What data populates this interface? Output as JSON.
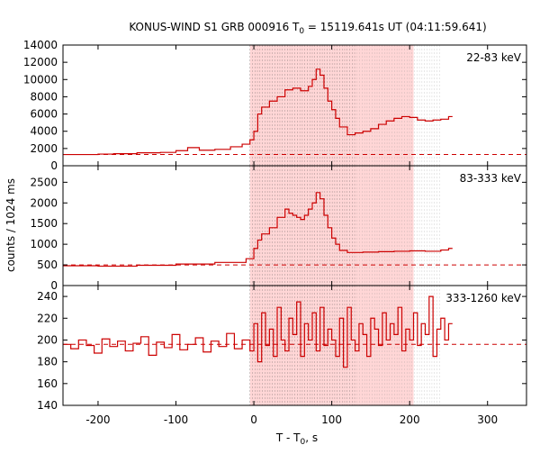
{
  "chart_data": {
    "type": "line",
    "title": "KONUS-WIND S1 GRB 000916 T",
    "title_sub": "0",
    "title_rest": " = 15119.641s UT (04:11:59.641)",
    "xlabel": "T - T",
    "xlabel_sub": "0",
    "xlabel_rest": ", s",
    "ylabel": "counts / 1024 ms",
    "xlim": [
      -245,
      350
    ],
    "xticks": [
      "-200",
      "-100",
      "0",
      "100",
      "200",
      "300"
    ],
    "xtick_values": [
      -200,
      -100,
      0,
      100,
      200,
      300
    ],
    "line_color": "#cc0000",
    "shade_color": "#ffd6d6",
    "shade_range": [
      -5,
      205
    ],
    "grid": false,
    "panels": [
      {
        "label": "22-83 keV",
        "ylim": [
          0,
          14000
        ],
        "yticks": [
          "0",
          "2000",
          "4000",
          "6000",
          "8000",
          "10000",
          "12000",
          "14000"
        ],
        "ytick_values": [
          0,
          2000,
          4000,
          6000,
          8000,
          10000,
          12000,
          14000
        ],
        "background": 1300,
        "series": {
          "x": [
            -245,
            -220,
            -200,
            -180,
            -150,
            -120,
            -100,
            -85,
            -70,
            -50,
            -30,
            -15,
            -5,
            0,
            5,
            10,
            20,
            30,
            40,
            50,
            60,
            70,
            75,
            80,
            85,
            90,
            95,
            100,
            105,
            110,
            120,
            130,
            140,
            150,
            160,
            170,
            180,
            190,
            200,
            210,
            220,
            230,
            240,
            250
          ],
          "y": [
            1300,
            1300,
            1350,
            1400,
            1500,
            1550,
            1750,
            2100,
            1800,
            1900,
            2200,
            2500,
            3000,
            4000,
            6000,
            6800,
            7500,
            8000,
            8800,
            9000,
            8700,
            9200,
            10000,
            11200,
            10500,
            9000,
            7500,
            6500,
            5500,
            4500,
            3600,
            3800,
            4000,
            4300,
            4800,
            5200,
            5500,
            5700,
            5600,
            5300,
            5200,
            5300,
            5400,
            5700
          ]
        }
      },
      {
        "label": "83-333 keV",
        "ylim": [
          0,
          2900
        ],
        "yticks": [
          "0",
          "500",
          "1000",
          "1500",
          "2000",
          "2500"
        ],
        "ytick_values": [
          0,
          500,
          1000,
          1500,
          2000,
          2500
        ],
        "background": 500,
        "series": {
          "x": [
            -245,
            -200,
            -150,
            -100,
            -50,
            -10,
            0,
            5,
            10,
            20,
            30,
            40,
            45,
            50,
            55,
            60,
            65,
            70,
            75,
            80,
            85,
            90,
            95,
            100,
            105,
            110,
            120,
            140,
            160,
            180,
            200,
            220,
            240,
            250
          ],
          "y": [
            480,
            470,
            490,
            520,
            560,
            650,
            900,
            1100,
            1250,
            1400,
            1650,
            1850,
            1750,
            1700,
            1650,
            1600,
            1700,
            1850,
            2000,
            2250,
            2100,
            1700,
            1400,
            1150,
            1000,
            850,
            800,
            810,
            820,
            830,
            840,
            830,
            860,
            900
          ]
        }
      },
      {
        "label": "333-1260 keV",
        "ylim": [
          140,
          250
        ],
        "yticks": [
          "140",
          "160",
          "180",
          "200",
          "220",
          "240"
        ],
        "ytick_values": [
          140,
          160,
          180,
          200,
          220,
          240
        ],
        "background": 196,
        "series": {
          "x": [
            -245,
            -235,
            -225,
            -215,
            -205,
            -195,
            -185,
            -175,
            -165,
            -155,
            -145,
            -135,
            -125,
            -115,
            -105,
            -95,
            -85,
            -75,
            -65,
            -55,
            -45,
            -35,
            -25,
            -15,
            -5,
            0,
            5,
            10,
            15,
            20,
            25,
            30,
            35,
            40,
            45,
            50,
            55,
            60,
            65,
            70,
            75,
            80,
            85,
            90,
            95,
            100,
            105,
            110,
            115,
            120,
            125,
            130,
            135,
            140,
            145,
            150,
            155,
            160,
            165,
            170,
            175,
            180,
            185,
            190,
            195,
            200,
            205,
            210,
            215,
            220,
            225,
            230,
            235,
            240,
            245,
            250
          ],
          "y": [
            196,
            192,
            200,
            195,
            188,
            201,
            194,
            199,
            190,
            197,
            203,
            186,
            198,
            193,
            205,
            191,
            196,
            202,
            189,
            199,
            194,
            206,
            192,
            200,
            190,
            215,
            180,
            225,
            195,
            210,
            185,
            230,
            200,
            190,
            220,
            205,
            235,
            185,
            215,
            200,
            225,
            190,
            230,
            195,
            210,
            200,
            185,
            220,
            175,
            230,
            200,
            190,
            215,
            205,
            185,
            220,
            210,
            195,
            225,
            200,
            215,
            205,
            230,
            190,
            210,
            200,
            225,
            195,
            215,
            205,
            240,
            185,
            210,
            220,
            200,
            215
          ]
        }
      }
    ]
  }
}
